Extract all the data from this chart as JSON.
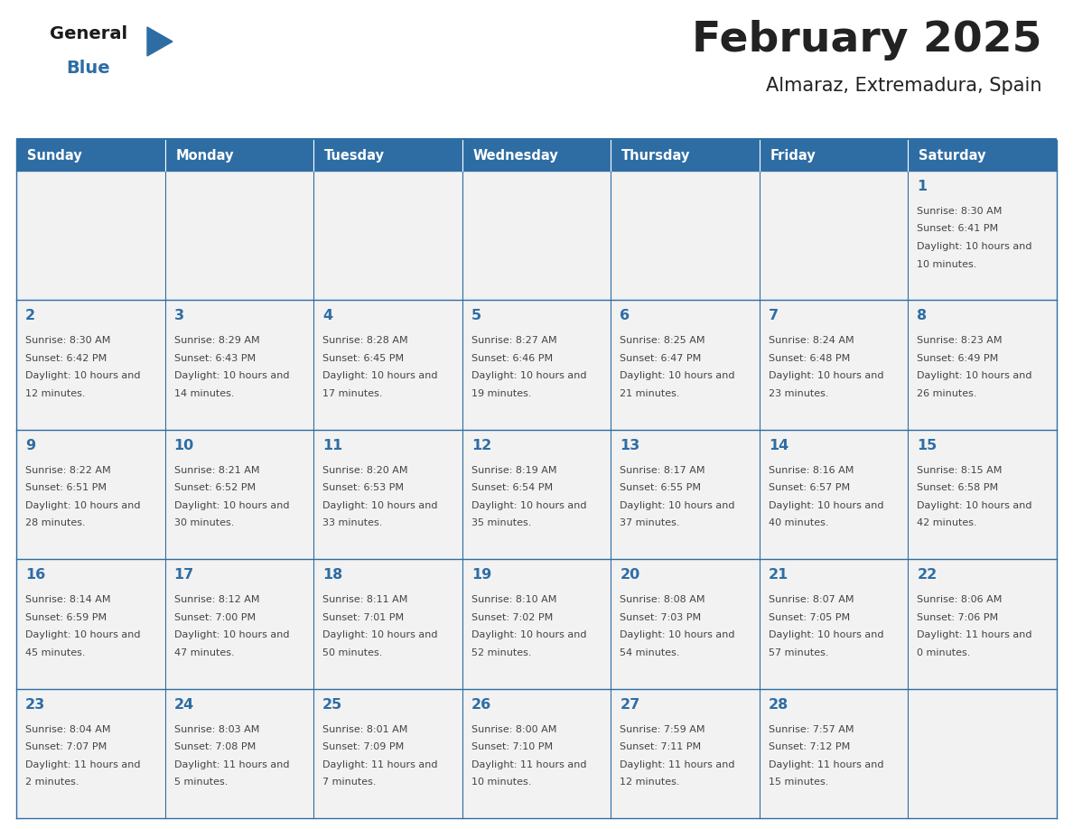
{
  "title": "February 2025",
  "subtitle": "Almaraz, Extremadura, Spain",
  "days_of_week": [
    "Sunday",
    "Monday",
    "Tuesday",
    "Wednesday",
    "Thursday",
    "Friday",
    "Saturday"
  ],
  "header_bg": "#2E6DA4",
  "header_text_color": "#FFFFFF",
  "cell_bg": "#F2F2F2",
  "border_color": "#2E6DA4",
  "title_color": "#222222",
  "day_number_color": "#2E6DA4",
  "info_color": "#444444",
  "logo_general_color": "#1a1a1a",
  "logo_blue_color": "#2E6DA4",
  "calendar_data": [
    [
      null,
      null,
      null,
      null,
      null,
      null,
      {
        "day": 1,
        "sunrise": "8:30 AM",
        "sunset": "6:41 PM",
        "daylight": "10 hours and 10 minutes."
      }
    ],
    [
      {
        "day": 2,
        "sunrise": "8:30 AM",
        "sunset": "6:42 PM",
        "daylight": "10 hours and 12 minutes."
      },
      {
        "day": 3,
        "sunrise": "8:29 AM",
        "sunset": "6:43 PM",
        "daylight": "10 hours and 14 minutes."
      },
      {
        "day": 4,
        "sunrise": "8:28 AM",
        "sunset": "6:45 PM",
        "daylight": "10 hours and 17 minutes."
      },
      {
        "day": 5,
        "sunrise": "8:27 AM",
        "sunset": "6:46 PM",
        "daylight": "10 hours and 19 minutes."
      },
      {
        "day": 6,
        "sunrise": "8:25 AM",
        "sunset": "6:47 PM",
        "daylight": "10 hours and 21 minutes."
      },
      {
        "day": 7,
        "sunrise": "8:24 AM",
        "sunset": "6:48 PM",
        "daylight": "10 hours and 23 minutes."
      },
      {
        "day": 8,
        "sunrise": "8:23 AM",
        "sunset": "6:49 PM",
        "daylight": "10 hours and 26 minutes."
      }
    ],
    [
      {
        "day": 9,
        "sunrise": "8:22 AM",
        "sunset": "6:51 PM",
        "daylight": "10 hours and 28 minutes."
      },
      {
        "day": 10,
        "sunrise": "8:21 AM",
        "sunset": "6:52 PM",
        "daylight": "10 hours and 30 minutes."
      },
      {
        "day": 11,
        "sunrise": "8:20 AM",
        "sunset": "6:53 PM",
        "daylight": "10 hours and 33 minutes."
      },
      {
        "day": 12,
        "sunrise": "8:19 AM",
        "sunset": "6:54 PM",
        "daylight": "10 hours and 35 minutes."
      },
      {
        "day": 13,
        "sunrise": "8:17 AM",
        "sunset": "6:55 PM",
        "daylight": "10 hours and 37 minutes."
      },
      {
        "day": 14,
        "sunrise": "8:16 AM",
        "sunset": "6:57 PM",
        "daylight": "10 hours and 40 minutes."
      },
      {
        "day": 15,
        "sunrise": "8:15 AM",
        "sunset": "6:58 PM",
        "daylight": "10 hours and 42 minutes."
      }
    ],
    [
      {
        "day": 16,
        "sunrise": "8:14 AM",
        "sunset": "6:59 PM",
        "daylight": "10 hours and 45 minutes."
      },
      {
        "day": 17,
        "sunrise": "8:12 AM",
        "sunset": "7:00 PM",
        "daylight": "10 hours and 47 minutes."
      },
      {
        "day": 18,
        "sunrise": "8:11 AM",
        "sunset": "7:01 PM",
        "daylight": "10 hours and 50 minutes."
      },
      {
        "day": 19,
        "sunrise": "8:10 AM",
        "sunset": "7:02 PM",
        "daylight": "10 hours and 52 minutes."
      },
      {
        "day": 20,
        "sunrise": "8:08 AM",
        "sunset": "7:03 PM",
        "daylight": "10 hours and 54 minutes."
      },
      {
        "day": 21,
        "sunrise": "8:07 AM",
        "sunset": "7:05 PM",
        "daylight": "10 hours and 57 minutes."
      },
      {
        "day": 22,
        "sunrise": "8:06 AM",
        "sunset": "7:06 PM",
        "daylight": "11 hours and 0 minutes."
      }
    ],
    [
      {
        "day": 23,
        "sunrise": "8:04 AM",
        "sunset": "7:07 PM",
        "daylight": "11 hours and 2 minutes."
      },
      {
        "day": 24,
        "sunrise": "8:03 AM",
        "sunset": "7:08 PM",
        "daylight": "11 hours and 5 minutes."
      },
      {
        "day": 25,
        "sunrise": "8:01 AM",
        "sunset": "7:09 PM",
        "daylight": "11 hours and 7 minutes."
      },
      {
        "day": 26,
        "sunrise": "8:00 AM",
        "sunset": "7:10 PM",
        "daylight": "11 hours and 10 minutes."
      },
      {
        "day": 27,
        "sunrise": "7:59 AM",
        "sunset": "7:11 PM",
        "daylight": "11 hours and 12 minutes."
      },
      {
        "day": 28,
        "sunrise": "7:57 AM",
        "sunset": "7:12 PM",
        "daylight": "11 hours and 15 minutes."
      },
      null
    ]
  ]
}
